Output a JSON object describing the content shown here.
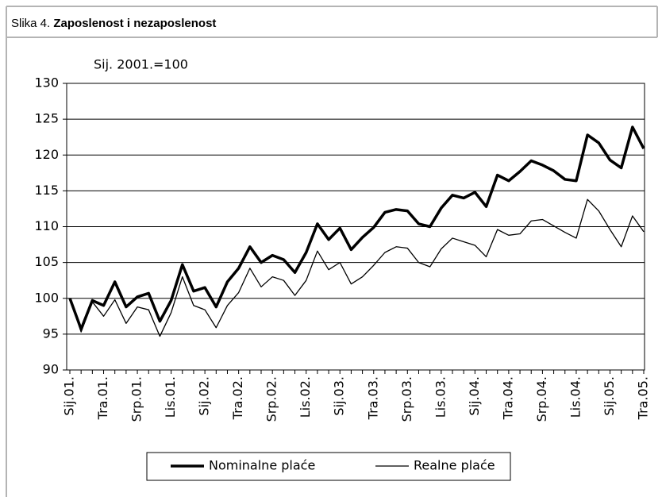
{
  "chart_data": {
    "type": "line",
    "figure_label": "Slika 4.",
    "title": "Zaposlenost i nezaposlenost",
    "y_label": "Sij. 2001.=100",
    "categories": [
      "Sij.01.",
      null,
      null,
      "Tra.01.",
      null,
      null,
      "Srp.01.",
      null,
      null,
      "Lis.01.",
      null,
      null,
      "Sij.02.",
      null,
      null,
      "Tra.02.",
      null,
      null,
      "Srp.02.",
      null,
      null,
      "Lis.02.",
      null,
      null,
      "Sij.03.",
      null,
      null,
      "Tra.03.",
      null,
      null,
      "Srp.03.",
      null,
      null,
      "Lis.03.",
      null,
      null,
      "Sij.04.",
      null,
      null,
      "Tra.04.",
      null,
      null,
      "Srp.04.",
      null,
      null,
      "Lis.04.",
      null,
      null,
      "Sij.05.",
      null,
      null,
      "Tra.05."
    ],
    "series": [
      {
        "name": "Nominalne plaće",
        "color": "#000000",
        "width": 3.5,
        "values": [
          100,
          95.7,
          99.7,
          99,
          102.3,
          98.8,
          100.2,
          100.7,
          96.8,
          99.7,
          104.7,
          101,
          101.5,
          98.8,
          102.3,
          104.2,
          107.2,
          105,
          106,
          105.4,
          103.6,
          106.4,
          110.4,
          108.2,
          109.8,
          106.8,
          108.5,
          109.9,
          112,
          112.4,
          112.2,
          110.4,
          110,
          112.6,
          114.4,
          114,
          114.8,
          112.8,
          117.2,
          116.4,
          117.7,
          119.2,
          118.6,
          117.8,
          116.6,
          116.4,
          122.8,
          121.7,
          119.3,
          118.2,
          123.9,
          120.9
        ]
      },
      {
        "name": "Realne plaće",
        "color": "#000000",
        "width": 1.3,
        "values": [
          100,
          95.3,
          99.5,
          97.5,
          99.8,
          96.5,
          98.8,
          98.4,
          94.7,
          98,
          103,
          99,
          98.4,
          95.9,
          99,
          100.8,
          104.2,
          101.6,
          103,
          102.5,
          100.4,
          102.5,
          106.6,
          104,
          105,
          102,
          103,
          104.6,
          106.4,
          107.2,
          107,
          105,
          104.4,
          106.9,
          108.4,
          107.9,
          107.4,
          105.8,
          109.6,
          108.8,
          109,
          110.8,
          111,
          110.1,
          109.2,
          108.4,
          113.8,
          112.2,
          109.6,
          107.2,
          111.5,
          109.3
        ]
      }
    ],
    "ylim": [
      90,
      130
    ],
    "yticks": [
      90,
      95,
      100,
      105,
      110,
      115,
      120,
      125,
      130
    ],
    "grid": true,
    "legend": "bottom"
  }
}
